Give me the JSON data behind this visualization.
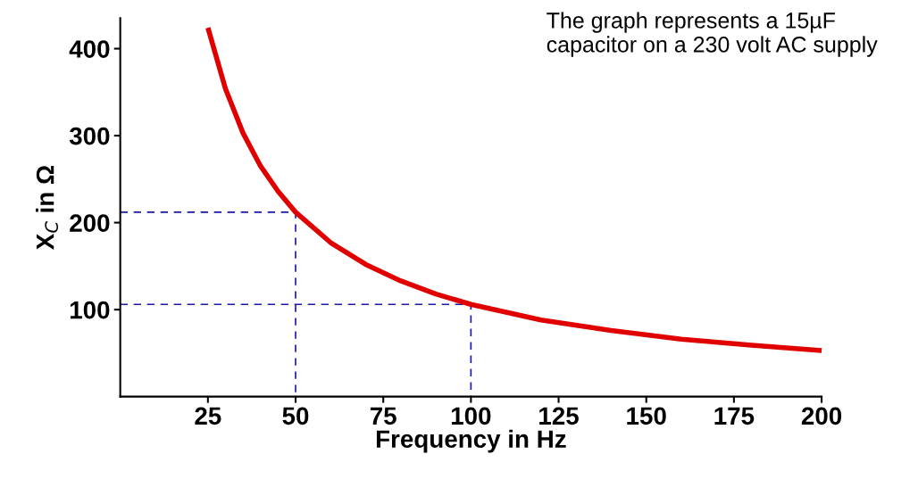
{
  "chart_data": {
    "type": "line",
    "xlabel": "Frequency in Hz",
    "ylabel": "X$_{C}$ in Ω",
    "annotations": [
      "The graph represents a 15µF capacitor on a 230 volt AC supply"
    ],
    "xlim": [
      0,
      200
    ],
    "ylim": [
      0,
      435
    ],
    "xticks": [
      25,
      50,
      75,
      100,
      125,
      150,
      175,
      200
    ],
    "yticks": [
      100,
      200,
      300,
      400
    ],
    "grid": false,
    "legend": false,
    "marker": "none",
    "series": [
      {
        "color": "#e00000",
        "line_style": "solid",
        "x": [
          25,
          30,
          35,
          40,
          45,
          50,
          60,
          70,
          80,
          90,
          100,
          120,
          140,
          160,
          180,
          200
        ],
        "values": [
          424,
          354,
          303,
          265,
          236,
          212,
          177,
          152,
          133,
          118,
          106,
          88,
          76,
          66,
          59,
          53
        ]
      },
      {
        "color": "#1a1aa6",
        "line_style": "dashed",
        "x": [
          0,
          50,
          50
        ],
        "values": [
          212,
          212,
          0
        ]
      },
      {
        "color": "#1a1aa6",
        "line_style": "dashed",
        "x": [
          0,
          100,
          100
        ],
        "values": [
          106,
          106,
          0
        ]
      }
    ]
  }
}
